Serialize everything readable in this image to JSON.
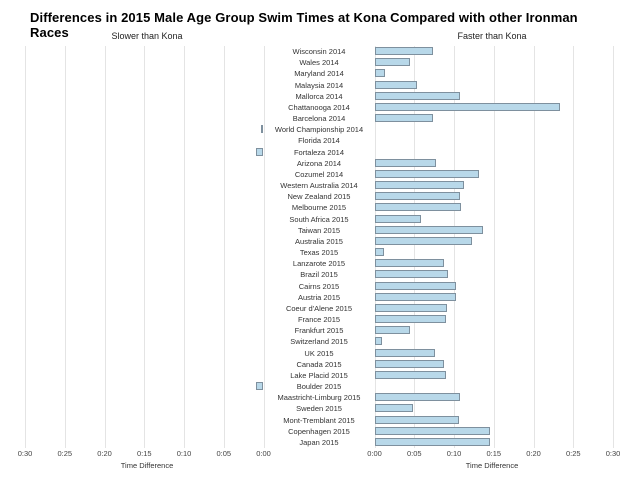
{
  "title": "Differences in 2015 Male Age Group Swim Times at Kona Compared with other Ironman Races",
  "panel_headers": {
    "left": "Slower than Kona",
    "right": "Faster than Kona"
  },
  "axis": {
    "label_left": "Time Difference",
    "label_right": "Time Difference",
    "left_ticks": [
      "0:30",
      "0:25",
      "0:20",
      "0:15",
      "0:10",
      "0:05",
      "0:00"
    ],
    "right_ticks": [
      "0:00",
      "0:05",
      "0:10",
      "0:15",
      "0:20",
      "0:25",
      "0:30"
    ]
  },
  "colors": {
    "bar_fill": "#b8d8e9",
    "bar_border": "#7e909e",
    "gridline": "#e4e4e4"
  },
  "chart_data": {
    "type": "bar",
    "orientation": "horizontal",
    "title": "Differences in 2015 Male Age Group Swim Times at Kona Compared with other Ironman Races",
    "xlabel": "Time Difference",
    "x_unit": "minutes",
    "x_range_minutes": [
      0,
      30
    ],
    "panels": [
      "Slower than Kona",
      "Faster than Kona"
    ],
    "grid": true,
    "note": "positive values = faster than Kona (right panel), negative = slower than Kona (left panel)",
    "categories": [
      "Wisconsin 2014",
      "Wales 2014",
      "Maryland 2014",
      "Malaysia 2014",
      "Mallorca 2014",
      "Chattanooga 2014",
      "Barcelona 2014",
      "World Championship 2014",
      "Florida 2014",
      "Fortaleza 2014",
      "Arizona 2014",
      "Cozumel 2014",
      "Western Australia 2014",
      "New Zealand 2015",
      "Melbourne 2015",
      "South Africa 2015",
      "Taiwan 2015",
      "Australia 2015",
      "Texas 2015",
      "Lanzarote 2015",
      "Brazil 2015",
      "Cairns 2015",
      "Austria 2015",
      "Coeur d'Alene 2015",
      "France 2015",
      "Frankfurt 2015",
      "Switzerland 2015",
      "UK 2015",
      "Canada 2015",
      "Lake Placid 2015",
      "Boulder 2015",
      "Maastricht-Limburg 2015",
      "Sweden 2015",
      "Mont-Tremblant 2015",
      "Copenhagen 2015",
      "Japan 2015"
    ],
    "values": [
      7.4,
      4.5,
      1.3,
      5.4,
      10.7,
      23.3,
      7.3,
      -0.3,
      0,
      -1.0,
      7.7,
      13.1,
      11.2,
      10.8,
      10.9,
      5.9,
      13.7,
      12.3,
      1.2,
      8.8,
      9.2,
      10.2,
      10.3,
      9.1,
      9.0,
      4.5,
      0.9,
      7.6,
      8.8,
      9.0,
      -1.0,
      10.7,
      4.8,
      10.6,
      14.5,
      14.5
    ]
  }
}
